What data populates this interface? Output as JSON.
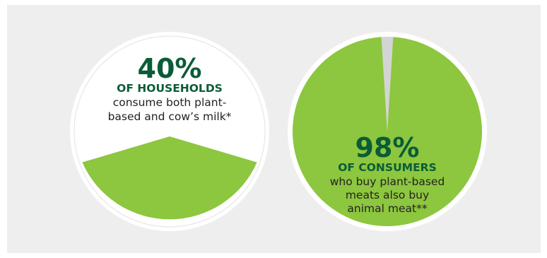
{
  "colors": {
    "background_panel": "#eeeeee",
    "pie_filled": "#8dc63f",
    "pie_empty": "#ffffff",
    "pie_remainder": "#d4d4d4",
    "headline_green": "#0a5c36"
  },
  "chart_data": [
    {
      "type": "pie",
      "slices": [
        {
          "value": 40,
          "highlighted": true
        },
        {
          "value": 60,
          "highlighted": false
        }
      ],
      "annotation": {
        "percent": "40%",
        "caption": "OF HOUSEHOLDS",
        "lines": [
          "consume both plant-",
          "based and cow’s milk*"
        ]
      }
    },
    {
      "type": "pie",
      "slices": [
        {
          "value": 98,
          "highlighted": true
        },
        {
          "value": 2,
          "highlighted": false
        }
      ],
      "annotation": {
        "percent": "98%",
        "caption": "OF CONSUMERS",
        "lines": [
          "who buy plant-based",
          "meats also buy",
          "animal meat**"
        ]
      }
    }
  ]
}
